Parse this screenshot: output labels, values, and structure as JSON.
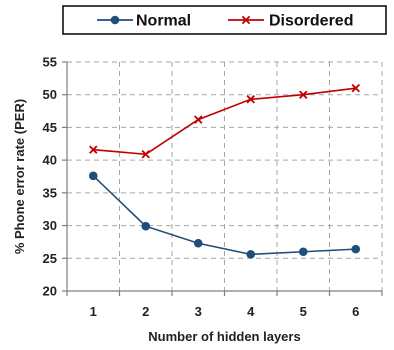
{
  "chart_data": {
    "type": "line",
    "x": [
      1,
      2,
      3,
      4,
      5,
      6
    ],
    "series": [
      {
        "name": "Normal",
        "values": [
          37.6,
          29.9,
          27.3,
          25.6,
          26.0,
          26.4
        ],
        "color": "#1f4e79",
        "marker": "circle"
      },
      {
        "name": "Disordered",
        "values": [
          41.6,
          40.9,
          46.2,
          49.3,
          50.0,
          51.0
        ],
        "color": "#c00000",
        "marker": "x"
      }
    ],
    "xlabel": "Number of hidden layers",
    "ylabel": "% Phone error rate (PER)",
    "ylim": [
      20,
      55
    ],
    "yticks": [
      20,
      25,
      30,
      35,
      40,
      45,
      50,
      55
    ],
    "xticks": [
      1,
      2,
      3,
      4,
      5,
      6
    ],
    "grid": "dashed",
    "legend_position": "top"
  }
}
